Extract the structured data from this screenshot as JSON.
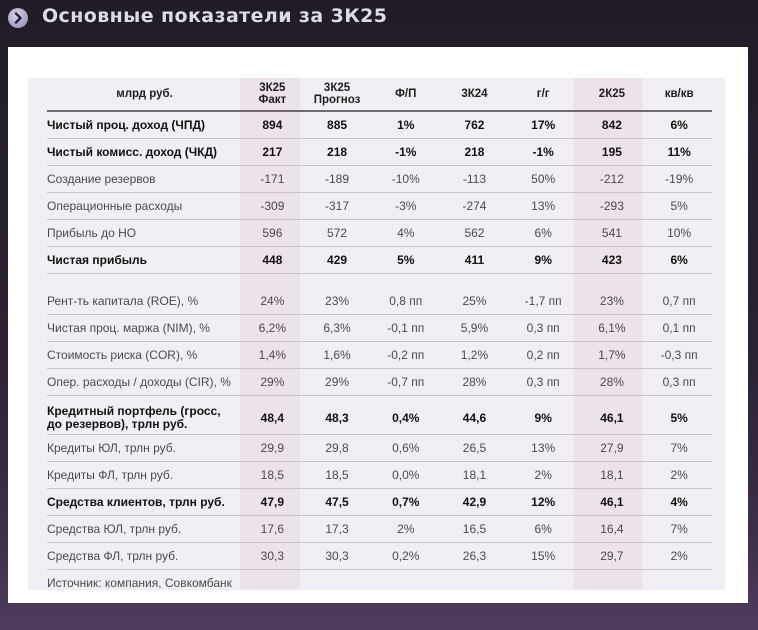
{
  "header": {
    "title": "Основные показатели за 3К25",
    "icon": "chevron-right-circle-icon"
  },
  "colors": {
    "background": "#221c28",
    "card": "#ffffff",
    "panel": "#f1eff4",
    "highlight_column": "#ece2ea",
    "title_text": "#dcdbe8"
  },
  "table": {
    "columns": [
      "млрд руб.",
      "3К25 Факт",
      "3К25 Прогноз",
      "Ф/П",
      "3К24",
      "г/г",
      "2К25",
      "кв/кв"
    ],
    "column_lines": {
      "c1": [
        "3К25",
        "Факт"
      ],
      "c2": [
        "3К25",
        "Прогноз"
      ]
    },
    "rows": [
      {
        "label": "Чистый проц. доход (ЧПД)",
        "bold": true,
        "values": [
          "894",
          "885",
          "1%",
          "762",
          "17%",
          "842",
          "6%"
        ]
      },
      {
        "label": "Чистый комисс. доход (ЧКД)",
        "bold": true,
        "values": [
          "217",
          "218",
          "-1%",
          "218",
          "-1%",
          "195",
          "11%"
        ]
      },
      {
        "label": "Создание резервов",
        "bold": false,
        "values": [
          "-171",
          "-189",
          "-10%",
          "-113",
          "50%",
          "-212",
          "-19%"
        ]
      },
      {
        "label": "Операционные расходы",
        "bold": false,
        "values": [
          "-309",
          "-317",
          "-3%",
          "-274",
          "13%",
          "-293",
          "5%"
        ]
      },
      {
        "label": "Прибыль до НО",
        "bold": false,
        "values": [
          "596",
          "572",
          "4%",
          "562",
          "6%",
          "541",
          "10%"
        ]
      },
      {
        "label": "Чистая прибыль",
        "bold": true,
        "values": [
          "448",
          "429",
          "5%",
          "411",
          "9%",
          "423",
          "6%"
        ]
      },
      {
        "label": "Рент-ть капитала (ROE), %",
        "bold": false,
        "values": [
          "24%",
          "23%",
          "0,8 пп",
          "25%",
          "-1,7 пп",
          "23%",
          "0,7 пп"
        ]
      },
      {
        "label": "Чистая проц. маржа (NIM), %",
        "bold": false,
        "values": [
          "6,2%",
          "6,3%",
          "-0,1 пп",
          "5,9%",
          "0,3 пп",
          "6,1%",
          "0,1 пп"
        ]
      },
      {
        "label": "Стоимость риска (COR), %",
        "bold": false,
        "values": [
          "1,4%",
          "1,6%",
          "-0,2 пп",
          "1,2%",
          "0,2 пп",
          "1,7%",
          "-0,3 пп"
        ]
      },
      {
        "label": "Опер. расходы / доходы (CIR), %",
        "bold": false,
        "values": [
          "29%",
          "29%",
          "-0,7 пп",
          "28%",
          "0,3 пп",
          "28%",
          "0,3 пп"
        ]
      },
      {
        "label": "Кредитный портфель (гросс, до резервов), трлн руб.",
        "label_lines": [
          "Кредитный портфель (гросс,",
          "до резервов), трлн руб."
        ],
        "bold": true,
        "values": [
          "48,4",
          "48,3",
          "0,4%",
          "44,6",
          "9%",
          "46,1",
          "5%"
        ]
      },
      {
        "label": "Кредиты ЮЛ, трлн руб.",
        "bold": false,
        "values": [
          "29,9",
          "29,8",
          "0,6%",
          "26,5",
          "13%",
          "27,9",
          "7%"
        ]
      },
      {
        "label": "Кредиты ФЛ, трлн руб.",
        "bold": false,
        "values": [
          "18,5",
          "18,5",
          "0,0%",
          "18,1",
          "2%",
          "18,1",
          "2%"
        ]
      },
      {
        "label": "Средства клиентов, трлн руб.",
        "bold": true,
        "values": [
          "47,9",
          "47,5",
          "0,7%",
          "42,9",
          "12%",
          "46,1",
          "4%"
        ]
      },
      {
        "label": "Средства ЮЛ, трлн руб.",
        "bold": false,
        "values": [
          "17,6",
          "17,3",
          "2%",
          "16,5",
          "6%",
          "16,4",
          "7%"
        ]
      },
      {
        "label": "Средства ФЛ, трлн руб.",
        "bold": false,
        "values": [
          "30,3",
          "30,3",
          "0,2%",
          "26,3",
          "15%",
          "29,7",
          "2%"
        ]
      }
    ],
    "source": "Источник: компания, Совкомбанк"
  }
}
